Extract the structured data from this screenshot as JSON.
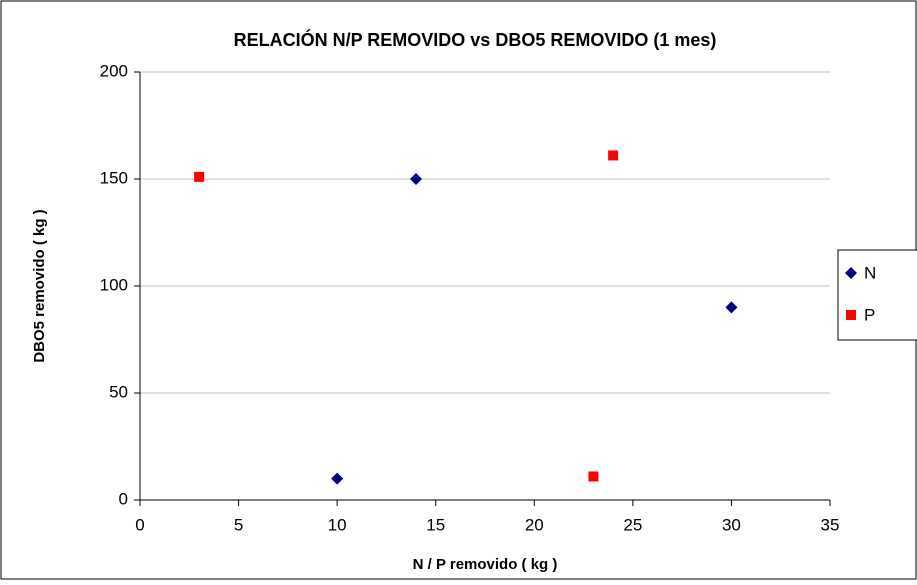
{
  "chart_data": {
    "type": "scatter",
    "title": "RELACIÓN N/P REMOVIDO vs DBO5 REMOVIDO (1 mes)",
    "x_label": "N / P removido ( kg )",
    "y_label": "DBO5 removido ( kg )",
    "series": [
      {
        "name": "N",
        "color": "#000080",
        "marker": "diamond",
        "x": [
          10,
          14,
          30
        ],
        "values": [
          10,
          150,
          90
        ]
      },
      {
        "name": "P",
        "color": "#ff0000",
        "marker": "square",
        "x": [
          3,
          23,
          24
        ],
        "values": [
          151,
          11,
          161
        ]
      }
    ],
    "xlim": [
      0,
      35
    ],
    "xticks": [
      0,
      5,
      10,
      15,
      20,
      25,
      30,
      35
    ],
    "ylim": [
      0,
      200
    ],
    "yticks": [
      0,
      50,
      100,
      150,
      200
    ],
    "grid": true,
    "legend": "right"
  }
}
